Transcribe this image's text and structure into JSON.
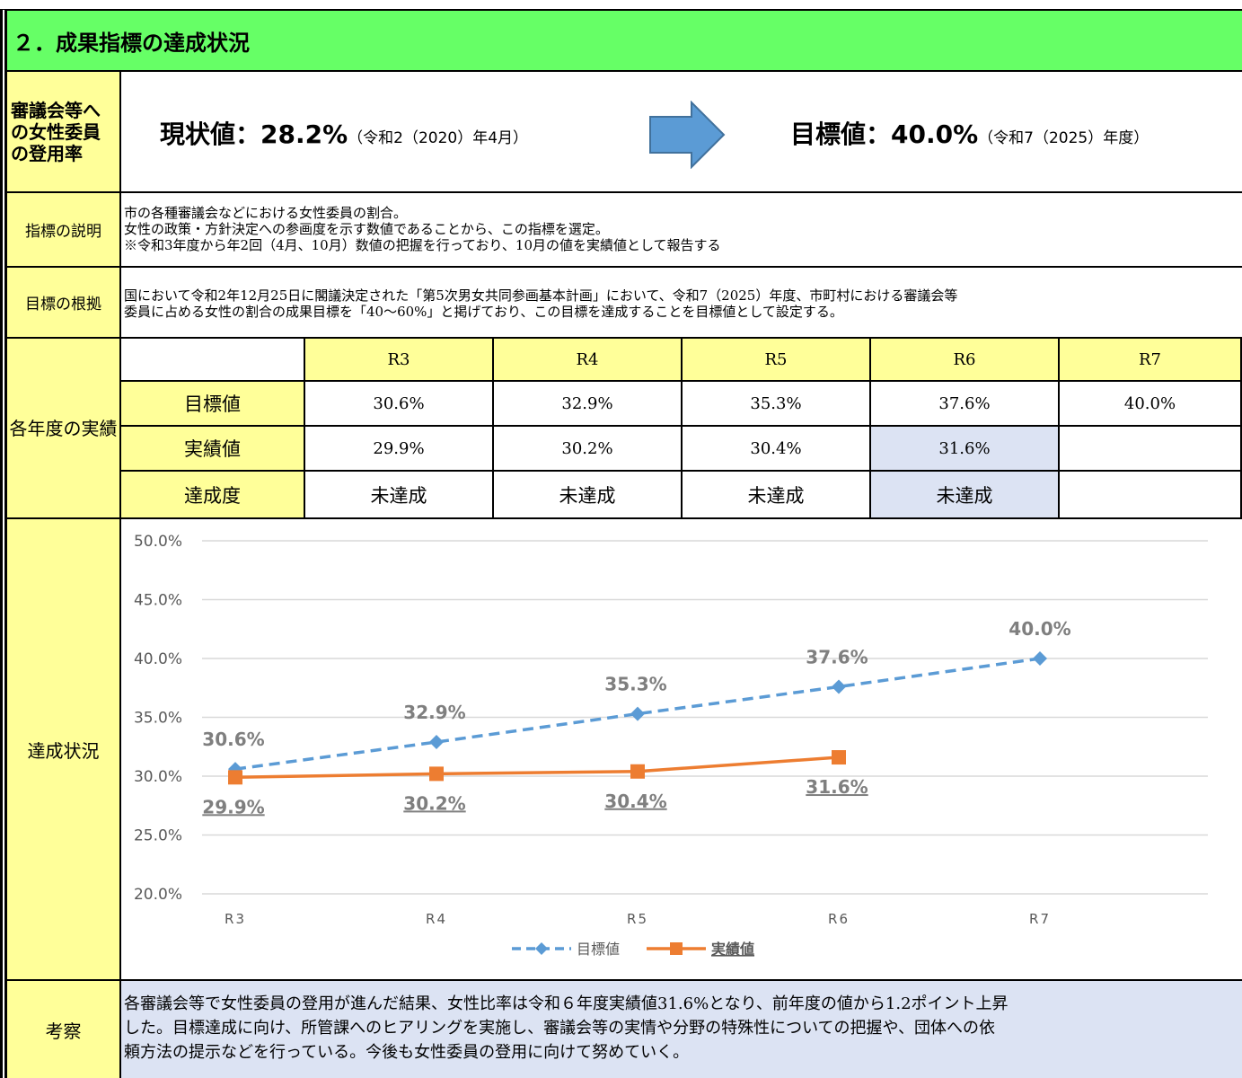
{
  "header": {
    "title": "２．成果指標の達成状況"
  },
  "indicator": {
    "label": "審議会等への女性委員の登用率",
    "current": {
      "value": "現状値：28.2%",
      "note": "（令和2（2020）年4月）"
    },
    "target": {
      "value": "目標値：40.0%",
      "note": "（令和7（2025）年度）"
    }
  },
  "description": {
    "label": "指標の説明",
    "lines": [
      "市の各種審議会などにおける女性委員の割合。",
      "女性の政策・方針決定への参画度を示す数値であることから、この指標を選定。",
      "※令和3年度から年2回（4月、10月）数値の把握を行っており、10月の値を実績値として報告する"
    ]
  },
  "basis": {
    "label": "目標の根拠",
    "lines": [
      "国において令和2年12月25日に閣議決定された「第5次男女共同参画基本計画」において、令和7（2025）年度、市町村における審議会等",
      "委員に占める女性の割合の成果目標を「40～60%」と掲げており、この目標を達成することを目標値として設定する。"
    ]
  },
  "results": {
    "label": "各年度の実績",
    "columns": [
      "R3",
      "R4",
      "R5",
      "R6",
      "R7"
    ],
    "rows": [
      {
        "label": "目標値",
        "cells": [
          "30.6%",
          "32.9%",
          "35.3%",
          "37.6%",
          "40.0%"
        ]
      },
      {
        "label": "実績値",
        "cells": [
          "29.9%",
          "30.2%",
          "30.4%",
          "31.6%"
        ]
      },
      {
        "label": "達成度",
        "cells": [
          "未達成",
          "未達成",
          "未達成",
          "未達成"
        ]
      }
    ]
  },
  "status": {
    "label": "達成状況"
  },
  "discussion": {
    "label": "考察",
    "lines": [
      "各審議会等で女性委員の登用が進んだ結果、女性比率は令和６年度実績値31.6%となり、前年度の値から1.2ポイント上昇",
      "した。目標達成に向け、所管課へのヒアリングを実施し、審議会等の実情や分野の特殊性についての把握や、団体への依",
      "頼方法の提示などを行っている。今後も女性委員の登用に向けて努めていく。"
    ]
  },
  "chart_data": {
    "type": "line",
    "categories": [
      "R3",
      "R4",
      "R5",
      "R6",
      "R7"
    ],
    "series": [
      {
        "name": "目標値",
        "color": "#5b9bd5",
        "values": [
          30.6,
          32.9,
          35.3,
          37.6,
          40.0
        ],
        "value_labels": [
          "30.6%",
          "32.9%",
          "35.3%",
          "37.6%",
          "40.0%"
        ]
      },
      {
        "name": "実績値",
        "color": "#ed7d31",
        "values": [
          29.9,
          30.2,
          30.4,
          31.6,
          null
        ],
        "value_labels": [
          "29.9%",
          "30.2%",
          "30.4%",
          "31.6%",
          null
        ]
      }
    ],
    "ylim": [
      20,
      50
    ],
    "yticks": [
      {
        "value": 20,
        "label": "20.0%"
      },
      {
        "value": 25,
        "label": "25.0%"
      },
      {
        "value": 30,
        "label": "30.0%"
      },
      {
        "value": 35,
        "label": "35.0%"
      },
      {
        "value": 40,
        "label": "40.0%"
      },
      {
        "value": 45,
        "label": "45.0%"
      },
      {
        "value": 50,
        "label": "50.0%"
      }
    ],
    "grid": true,
    "legend": "bottom"
  }
}
